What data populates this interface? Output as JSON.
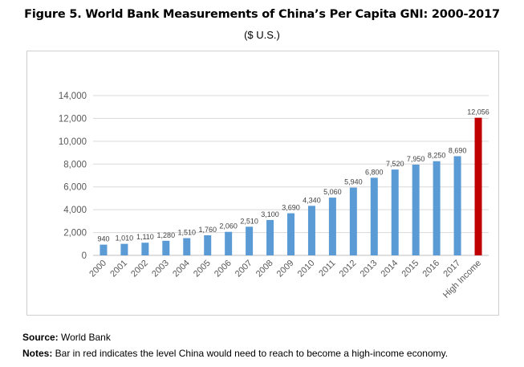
{
  "chart_data": {
    "type": "bar",
    "title": "Figure 5. World Bank Measurements of China’s Per Capita GNI: 2000-2017",
    "subtitle": "($ U.S.)",
    "categories": [
      "2000",
      "2001",
      "2002",
      "2003",
      "2004",
      "2005",
      "2006",
      "2007",
      "2008",
      "2009",
      "2010",
      "2011",
      "2012",
      "2013",
      "2014",
      "2015",
      "2016",
      "2017",
      "High Income"
    ],
    "values": [
      940,
      1010,
      1110,
      1280,
      1510,
      1760,
      2060,
      2510,
      3100,
      3690,
      4340,
      5060,
      5940,
      6800,
      7520,
      7950,
      8250,
      8690,
      12056
    ],
    "data_labels": [
      "940",
      "1,010",
      "1,110",
      "1,280",
      "1,510",
      "1,760",
      "2,060",
      "2,510",
      "3,100",
      "3,690",
      "4,340",
      "5,060",
      "5,940",
      "6,800",
      "7,520",
      "7,950",
      "8,250",
      "8,690",
      "12,056"
    ],
    "colors": [
      "#5b9bd5",
      "#5b9bd5",
      "#5b9bd5",
      "#5b9bd5",
      "#5b9bd5",
      "#5b9bd5",
      "#5b9bd5",
      "#5b9bd5",
      "#5b9bd5",
      "#5b9bd5",
      "#5b9bd5",
      "#5b9bd5",
      "#5b9bd5",
      "#5b9bd5",
      "#5b9bd5",
      "#5b9bd5",
      "#5b9bd5",
      "#5b9bd5",
      "#c00000"
    ],
    "ylim": [
      0,
      14000
    ],
    "yticks": [
      0,
      2000,
      4000,
      6000,
      8000,
      10000,
      12000,
      14000
    ],
    "ytick_labels": [
      "0",
      "2,000",
      "4,000",
      "6,000",
      "8,000",
      "10,000",
      "12,000",
      "14,000"
    ],
    "grid": true,
    "xlabel": "",
    "ylabel": ""
  },
  "footer": {
    "source_label": "Source:",
    "source_text": " World Bank",
    "notes_label": "Notes:",
    "notes_text": " Bar in red indicates the level China would need to reach to become a high-income economy."
  }
}
